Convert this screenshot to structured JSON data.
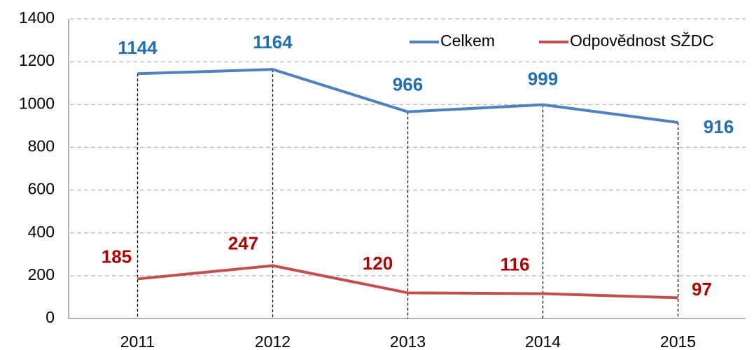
{
  "chart_data": {
    "type": "line",
    "categories": [
      "2011",
      "2012",
      "2013",
      "2014",
      "2015"
    ],
    "series": [
      {
        "name": "Celkem",
        "color": "#4f81bd",
        "label_color": "#1f6fb2",
        "values": [
          1144,
          1164,
          966,
          999,
          916
        ]
      },
      {
        "name": "Odpovědnost SŽDC",
        "color": "#c0504d",
        "label_color": "#b00000",
        "values": [
          185,
          247,
          120,
          116,
          97
        ]
      }
    ],
    "ylim": [
      0,
      1400
    ],
    "yticks": [
      0,
      200,
      400,
      600,
      800,
      1000,
      1200,
      1400
    ],
    "grid": true,
    "legend": "upper right"
  }
}
